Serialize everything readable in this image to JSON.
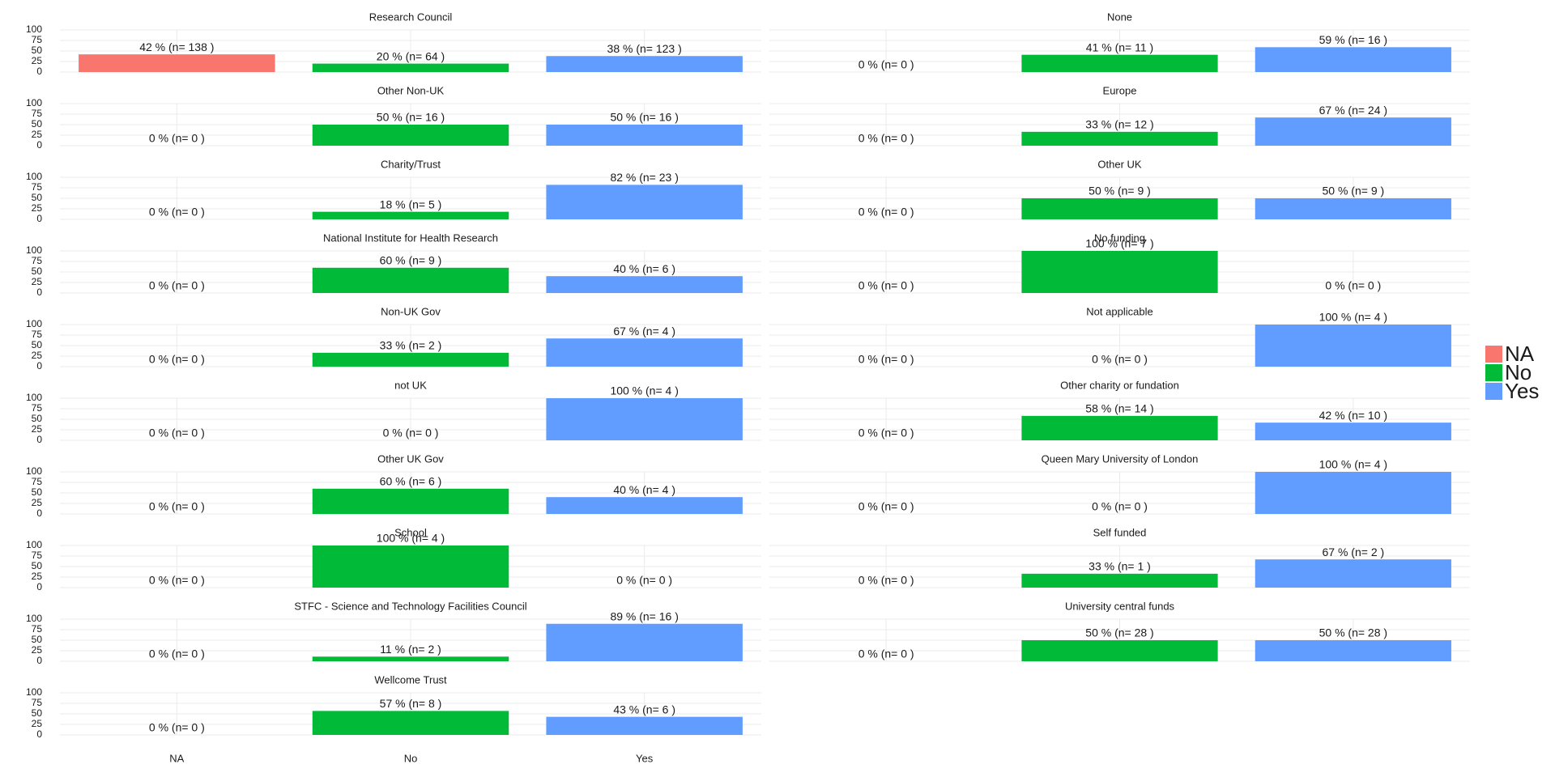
{
  "chart_data": [
    {
      "type": "bar",
      "title": "Research Council",
      "categories": [
        "NA",
        "No",
        "Yes"
      ],
      "values": [
        42,
        20,
        38
      ],
      "value_labels": [
        "42 % (n= 138 )",
        "20 % (n= 64 )",
        "38 % (n= 123 )"
      ],
      "colors": [
        "#f8766d",
        "#00ba38",
        "#619cff"
      ],
      "ylim": [
        0,
        100
      ],
      "yticks": [
        0,
        25,
        50,
        75,
        100
      ],
      "grid": true
    },
    {
      "type": "bar",
      "title": "None",
      "categories": [
        "NA",
        "No",
        "Yes"
      ],
      "values": [
        0,
        41,
        59
      ],
      "value_labels": [
        "0 % (n= 0 )",
        "41 % (n= 11 )",
        "59 % (n= 16 )"
      ],
      "colors": [
        "#f8766d",
        "#00ba38",
        "#619cff"
      ],
      "ylim": [
        0,
        100
      ],
      "yticks": [
        0,
        25,
        50,
        75,
        100
      ],
      "grid": true
    },
    {
      "type": "bar",
      "title": "Other Non-UK",
      "categories": [
        "NA",
        "No",
        "Yes"
      ],
      "values": [
        0,
        50,
        50
      ],
      "value_labels": [
        "0 % (n= 0 )",
        "50 % (n= 16 )",
        "50 % (n= 16 )"
      ],
      "colors": [
        "#f8766d",
        "#00ba38",
        "#619cff"
      ],
      "ylim": [
        0,
        100
      ],
      "yticks": [
        0,
        25,
        50,
        75,
        100
      ],
      "grid": true
    },
    {
      "type": "bar",
      "title": "Europe",
      "categories": [
        "NA",
        "No",
        "Yes"
      ],
      "values": [
        0,
        33,
        67
      ],
      "value_labels": [
        "0 % (n= 0 )",
        "33 % (n= 12 )",
        "67 % (n= 24 )"
      ],
      "colors": [
        "#f8766d",
        "#00ba38",
        "#619cff"
      ],
      "ylim": [
        0,
        100
      ],
      "yticks": [
        0,
        25,
        50,
        75,
        100
      ],
      "grid": true
    },
    {
      "type": "bar",
      "title": "Charity/Trust",
      "categories": [
        "NA",
        "No",
        "Yes"
      ],
      "values": [
        0,
        18,
        82
      ],
      "value_labels": [
        "0 % (n= 0 )",
        "18 % (n= 5 )",
        "82 % (n= 23 )"
      ],
      "colors": [
        "#f8766d",
        "#00ba38",
        "#619cff"
      ],
      "ylim": [
        0,
        100
      ],
      "yticks": [
        0,
        25,
        50,
        75,
        100
      ],
      "grid": true
    },
    {
      "type": "bar",
      "title": "Other UK",
      "categories": [
        "NA",
        "No",
        "Yes"
      ],
      "values": [
        0,
        50,
        50
      ],
      "value_labels": [
        "0 % (n= 0 )",
        "50 % (n= 9 )",
        "50 % (n= 9 )"
      ],
      "colors": [
        "#f8766d",
        "#00ba38",
        "#619cff"
      ],
      "ylim": [
        0,
        100
      ],
      "yticks": [
        0,
        25,
        50,
        75,
        100
      ],
      "grid": true
    },
    {
      "type": "bar",
      "title": "National Institute for Health Research",
      "categories": [
        "NA",
        "No",
        "Yes"
      ],
      "values": [
        0,
        60,
        40
      ],
      "value_labels": [
        "0 % (n= 0 )",
        "60 % (n= 9 )",
        "40 % (n= 6 )"
      ],
      "colors": [
        "#f8766d",
        "#00ba38",
        "#619cff"
      ],
      "ylim": [
        0,
        100
      ],
      "yticks": [
        0,
        25,
        50,
        75,
        100
      ],
      "grid": true
    },
    {
      "type": "bar",
      "title": "No funding",
      "categories": [
        "NA",
        "No",
        "Yes"
      ],
      "values": [
        0,
        100,
        0
      ],
      "value_labels": [
        "0 % (n= 0 )",
        "100 % (n= 7 )",
        "0 % (n= 0 )"
      ],
      "colors": [
        "#f8766d",
        "#00ba38",
        "#619cff"
      ],
      "ylim": [
        0,
        100
      ],
      "yticks": [
        0,
        25,
        50,
        75,
        100
      ],
      "grid": true
    },
    {
      "type": "bar",
      "title": "Non-UK Gov",
      "categories": [
        "NA",
        "No",
        "Yes"
      ],
      "values": [
        0,
        33,
        67
      ],
      "value_labels": [
        "0 % (n= 0 )",
        "33 % (n= 2 )",
        "67 % (n= 4 )"
      ],
      "colors": [
        "#f8766d",
        "#00ba38",
        "#619cff"
      ],
      "ylim": [
        0,
        100
      ],
      "yticks": [
        0,
        25,
        50,
        75,
        100
      ],
      "grid": true
    },
    {
      "type": "bar",
      "title": "Not applicable",
      "categories": [
        "NA",
        "No",
        "Yes"
      ],
      "values": [
        0,
        0,
        100
      ],
      "value_labels": [
        "0 % (n= 0 )",
        "0 % (n= 0 )",
        "100 % (n= 4 )"
      ],
      "colors": [
        "#f8766d",
        "#00ba38",
        "#619cff"
      ],
      "ylim": [
        0,
        100
      ],
      "yticks": [
        0,
        25,
        50,
        75,
        100
      ],
      "grid": true
    },
    {
      "type": "bar",
      "title": "not UK",
      "categories": [
        "NA",
        "No",
        "Yes"
      ],
      "values": [
        0,
        0,
        100
      ],
      "value_labels": [
        "0 % (n= 0 )",
        "0 % (n= 0 )",
        "100 % (n= 4 )"
      ],
      "colors": [
        "#f8766d",
        "#00ba38",
        "#619cff"
      ],
      "ylim": [
        0,
        100
      ],
      "yticks": [
        0,
        25,
        50,
        75,
        100
      ],
      "grid": true
    },
    {
      "type": "bar",
      "title": "Other charity or fundation",
      "categories": [
        "NA",
        "No",
        "Yes"
      ],
      "values": [
        0,
        58,
        42
      ],
      "value_labels": [
        "0 % (n= 0 )",
        "58 % (n= 14 )",
        "42 % (n= 10 )"
      ],
      "colors": [
        "#f8766d",
        "#00ba38",
        "#619cff"
      ],
      "ylim": [
        0,
        100
      ],
      "yticks": [
        0,
        25,
        50,
        75,
        100
      ],
      "grid": true
    },
    {
      "type": "bar",
      "title": "Other UK Gov",
      "categories": [
        "NA",
        "No",
        "Yes"
      ],
      "values": [
        0,
        60,
        40
      ],
      "value_labels": [
        "0 % (n= 0 )",
        "60 % (n= 6 )",
        "40 % (n= 4 )"
      ],
      "colors": [
        "#f8766d",
        "#00ba38",
        "#619cff"
      ],
      "ylim": [
        0,
        100
      ],
      "yticks": [
        0,
        25,
        50,
        75,
        100
      ],
      "grid": true
    },
    {
      "type": "bar",
      "title": "Queen Mary University of London",
      "categories": [
        "NA",
        "No",
        "Yes"
      ],
      "values": [
        0,
        0,
        100
      ],
      "value_labels": [
        "0 % (n= 0 )",
        "0 % (n= 0 )",
        "100 % (n= 4 )"
      ],
      "colors": [
        "#f8766d",
        "#00ba38",
        "#619cff"
      ],
      "ylim": [
        0,
        100
      ],
      "yticks": [
        0,
        25,
        50,
        75,
        100
      ],
      "grid": true
    },
    {
      "type": "bar",
      "title": "School",
      "categories": [
        "NA",
        "No",
        "Yes"
      ],
      "values": [
        0,
        100,
        0
      ],
      "value_labels": [
        "0 % (n= 0 )",
        "100 % (n= 4 )",
        "0 % (n= 0 )"
      ],
      "colors": [
        "#f8766d",
        "#00ba38",
        "#619cff"
      ],
      "ylim": [
        0,
        100
      ],
      "yticks": [
        0,
        25,
        50,
        75,
        100
      ],
      "grid": true
    },
    {
      "type": "bar",
      "title": "Self funded",
      "categories": [
        "NA",
        "No",
        "Yes"
      ],
      "values": [
        0,
        33,
        67
      ],
      "value_labels": [
        "0 % (n= 0 )",
        "33 % (n= 1 )",
        "67 % (n= 2 )"
      ],
      "colors": [
        "#f8766d",
        "#00ba38",
        "#619cff"
      ],
      "ylim": [
        0,
        100
      ],
      "yticks": [
        0,
        25,
        50,
        75,
        100
      ],
      "grid": true
    },
    {
      "type": "bar",
      "title": "STFC - Science and Technology Facilities Council",
      "categories": [
        "NA",
        "No",
        "Yes"
      ],
      "values": [
        0,
        11,
        89
      ],
      "value_labels": [
        "0 % (n= 0 )",
        "11 % (n= 2 )",
        "89 % (n= 16 )"
      ],
      "colors": [
        "#f8766d",
        "#00ba38",
        "#619cff"
      ],
      "ylim": [
        0,
        100
      ],
      "yticks": [
        0,
        25,
        50,
        75,
        100
      ],
      "grid": true
    },
    {
      "type": "bar",
      "title": "University central funds",
      "categories": [
        "NA",
        "No",
        "Yes"
      ],
      "values": [
        0,
        50,
        50
      ],
      "value_labels": [
        "0 % (n= 0 )",
        "50 % (n= 28 )",
        "50 % (n= 28 )"
      ],
      "colors": [
        "#f8766d",
        "#00ba38",
        "#619cff"
      ],
      "ylim": [
        0,
        100
      ],
      "yticks": [
        0,
        25,
        50,
        75,
        100
      ],
      "grid": true
    },
    {
      "type": "bar",
      "title": "Wellcome Trust",
      "categories": [
        "NA",
        "No",
        "Yes"
      ],
      "values": [
        0,
        57,
        43
      ],
      "value_labels": [
        "0 % (n= 0 )",
        "57 % (n= 8 )",
        "43 % (n= 6 )"
      ],
      "colors": [
        "#f8766d",
        "#00ba38",
        "#619cff"
      ],
      "ylim": [
        0,
        100
      ],
      "yticks": [
        0,
        25,
        50,
        75,
        100
      ],
      "grid": true
    }
  ],
  "legend": {
    "labels": [
      "NA",
      "No",
      "Yes"
    ],
    "colors": [
      "#f8766d",
      "#00ba38",
      "#619cff"
    ]
  }
}
